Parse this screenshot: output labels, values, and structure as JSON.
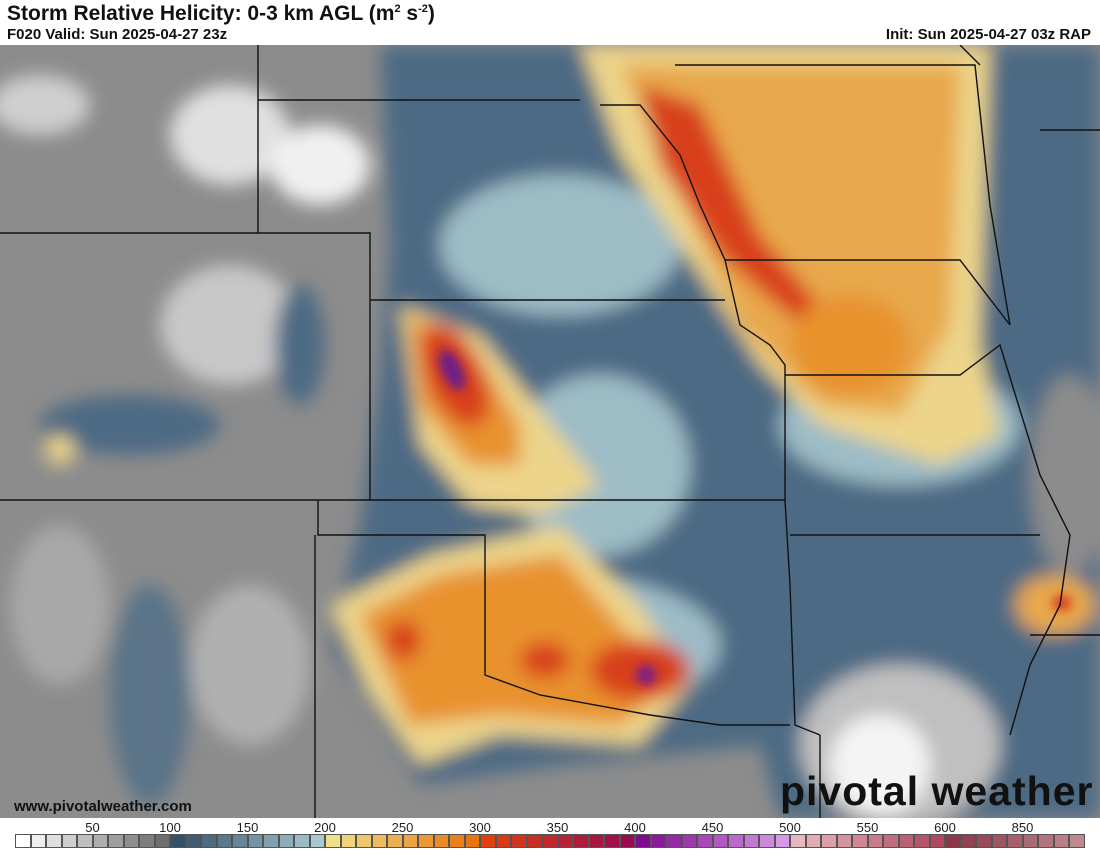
{
  "header": {
    "title": "Storm Relative Helicity: 0-3 km AGL (m",
    "title_sup1": "2",
    "title_mid": " s",
    "title_sup2": "-2",
    "title_end": ")",
    "valid": "F020 Valid: Sun 2025-04-27 23z",
    "init": "Init: Sun 2025-04-27 03z RAP"
  },
  "watermark": "www.pivotalweather.com",
  "logo": "pivotal weather",
  "colorbar": {
    "labels": [
      "50",
      "100",
      "150",
      "200",
      "250",
      "300",
      "350",
      "400",
      "450",
      "500",
      "550",
      "600",
      "850"
    ],
    "stops": [
      [
        "#ffffff",
        "#6e6e6e"
      ],
      [
        "#34506a",
        "#a8c8d0"
      ],
      [
        "#f0e08a",
        "#e8740c"
      ],
      [
        "#e04010",
        "#9a0a50"
      ],
      [
        "#800a90",
        "#d898e8"
      ],
      [
        "#e8b8c0",
        "#b04860"
      ],
      [
        "#8a3848",
        "#c08890"
      ]
    ]
  },
  "map": {
    "colors": {
      "gray": "#8c8c8c",
      "light_gray": "#d8d8d8",
      "blue": "#4d6b84",
      "light_blue": "#9dbcc6",
      "yellow": "#ecd48a",
      "orange": "#e8922e",
      "red": "#d8401a",
      "purple": "#6a1a8a"
    }
  }
}
